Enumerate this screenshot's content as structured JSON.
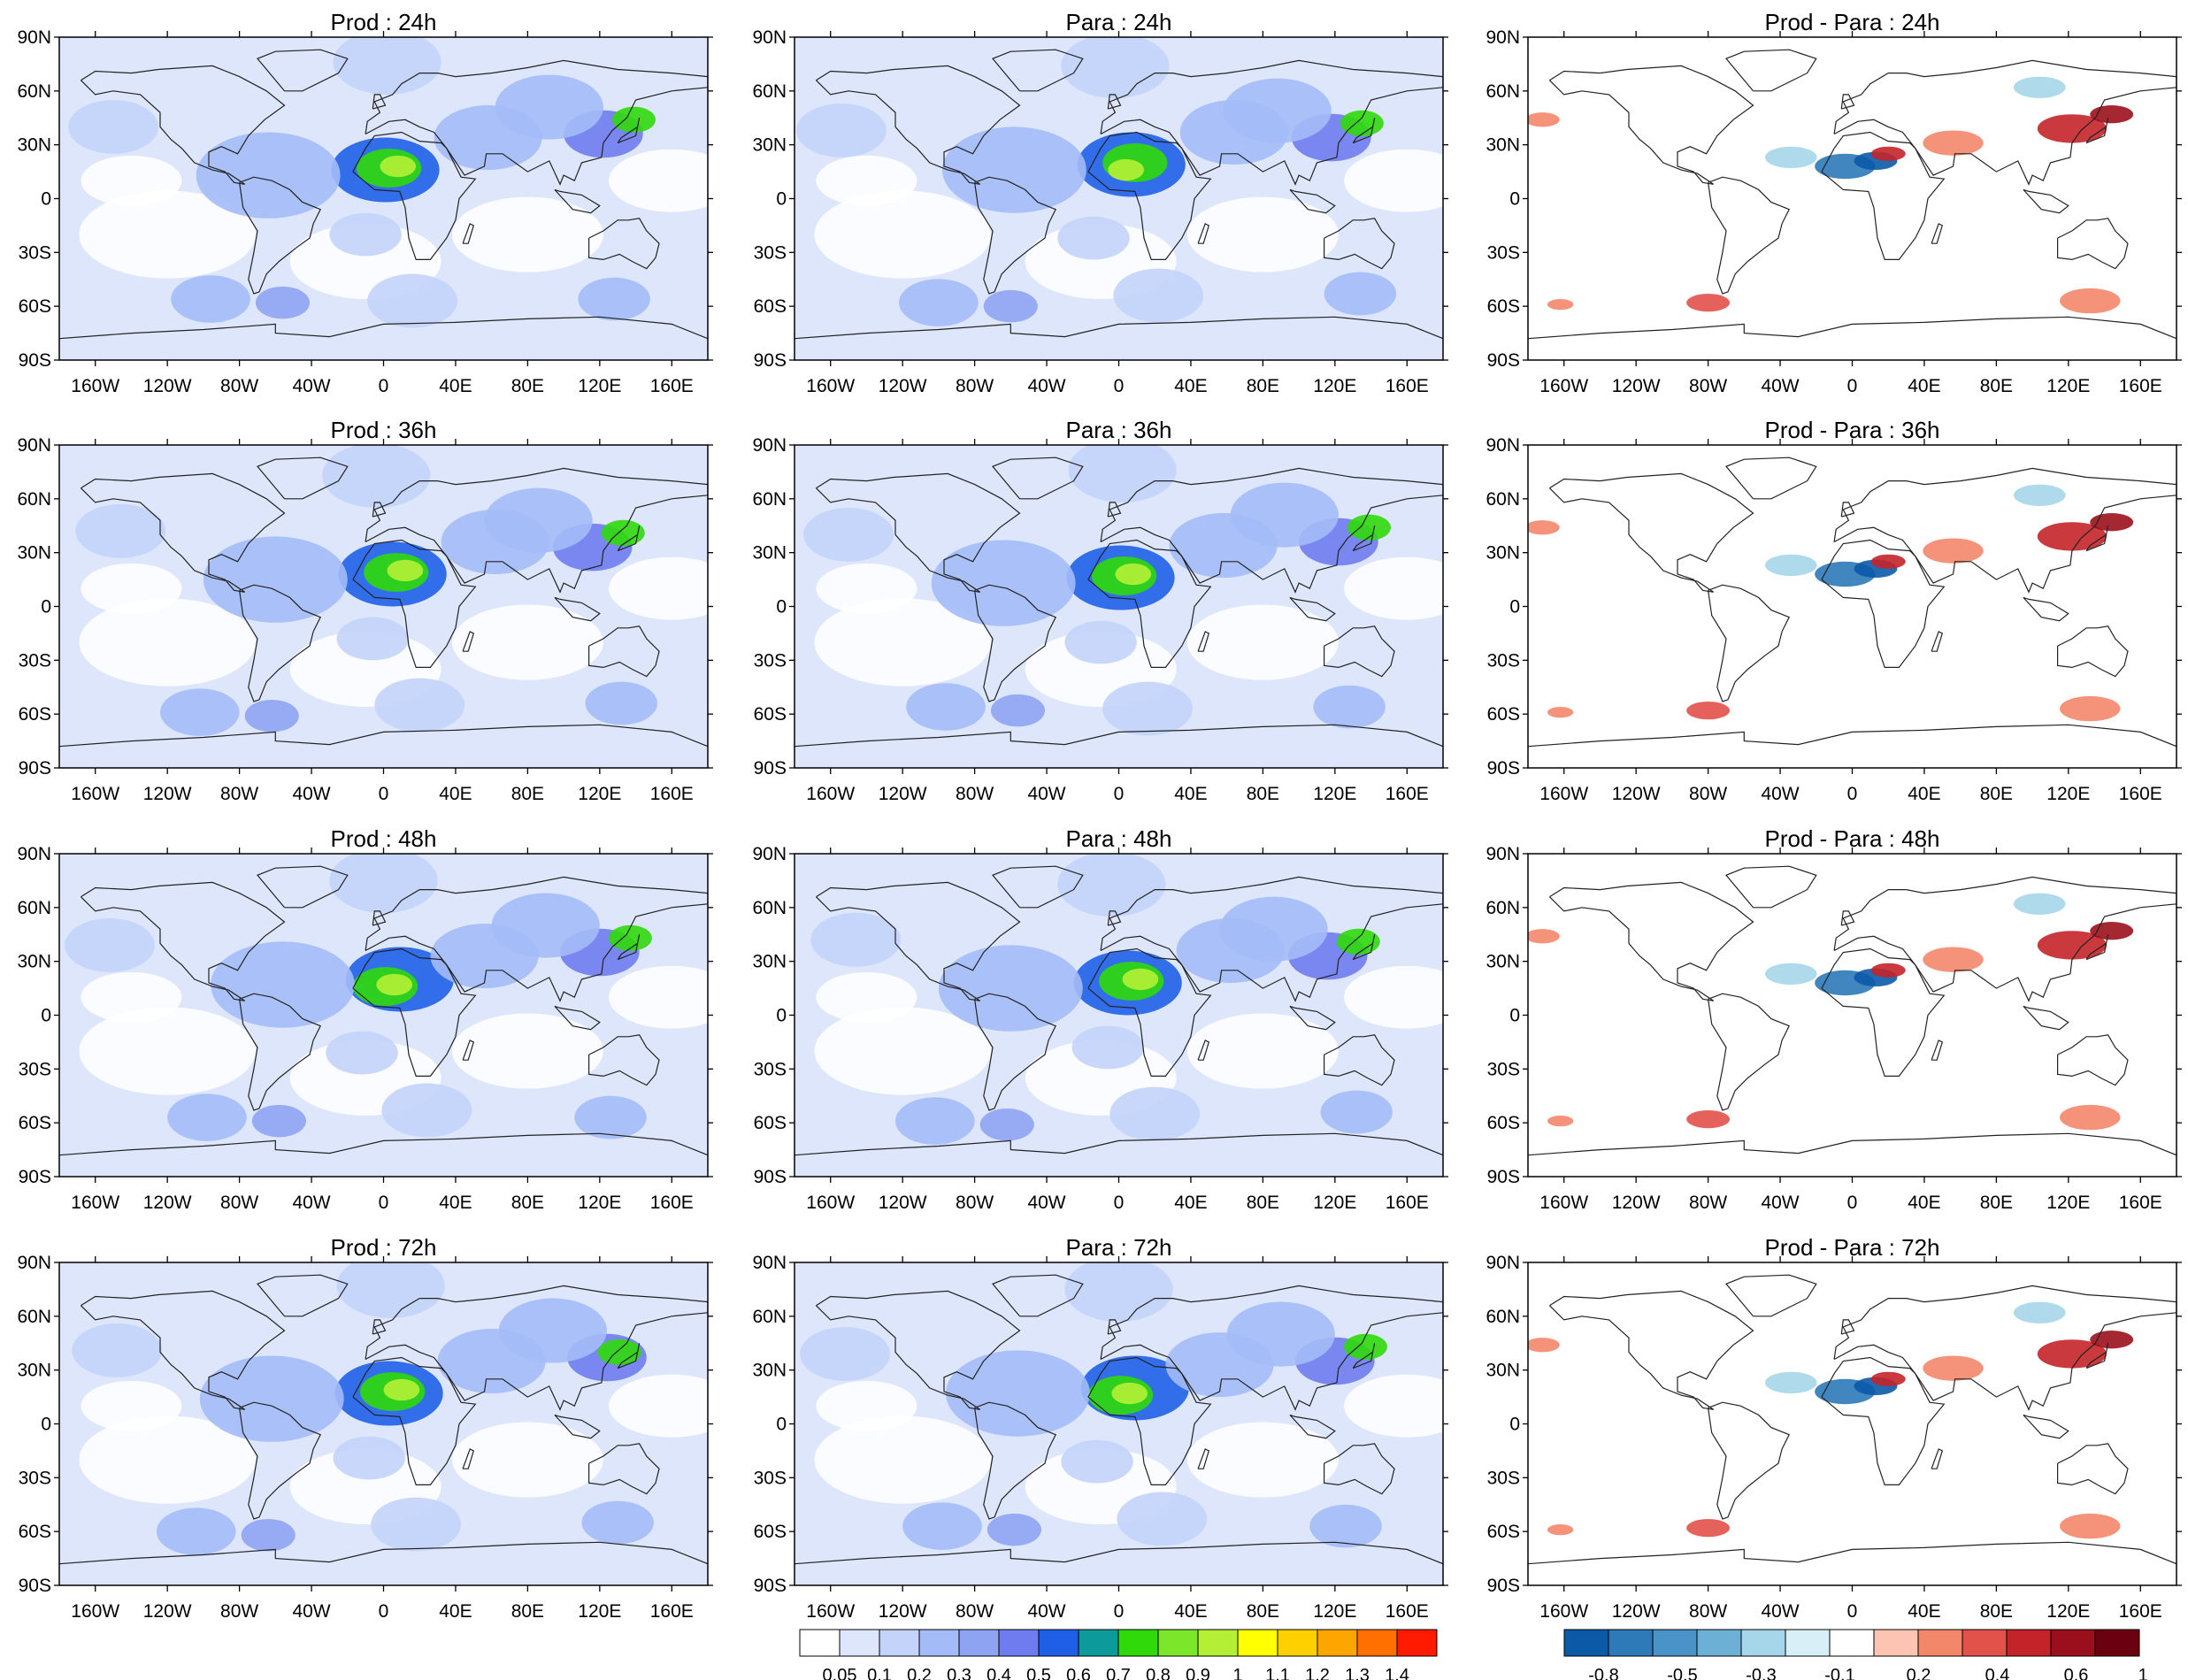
{
  "colors": {
    "field_scale": [
      "#ffffff",
      "#dde6fb",
      "#c3d3fa",
      "#a3bbf7",
      "#8ea4f3",
      "#6f7cef",
      "#1f5fe8",
      "#0c9a9a",
      "#2fd90a",
      "#7be62a",
      "#b5ef35",
      "#ffff00",
      "#ffd000",
      "#ffa500",
      "#ff7000",
      "#ff1a00"
    ],
    "diff_scale": [
      "#0b5aa8",
      "#2e79b8",
      "#4a93c8",
      "#6cb1d5",
      "#a5d6e9",
      "#d9eff7",
      "#ffffff",
      "#fdc4b4",
      "#f3876a",
      "#e2514a",
      "#c42429",
      "#9a0f1b",
      "#6b0010"
    ]
  },
  "panels": [
    {
      "title": "Prod : 24h",
      "type": "field",
      "row": 0,
      "col": 0
    },
    {
      "title": "Para : 24h",
      "type": "field",
      "row": 0,
      "col": 1
    },
    {
      "title": "Prod - Para : 24h",
      "type": "diff",
      "row": 0,
      "col": 2
    },
    {
      "title": "Prod : 36h",
      "type": "field",
      "row": 1,
      "col": 0
    },
    {
      "title": "Para : 36h",
      "type": "field",
      "row": 1,
      "col": 1
    },
    {
      "title": "Prod - Para : 36h",
      "type": "diff",
      "row": 1,
      "col": 2
    },
    {
      "title": "Prod : 48h",
      "type": "field",
      "row": 2,
      "col": 0
    },
    {
      "title": "Para : 48h",
      "type": "field",
      "row": 2,
      "col": 1
    },
    {
      "title": "Prod - Para : 48h",
      "type": "diff",
      "row": 2,
      "col": 2
    },
    {
      "title": "Prod : 72h",
      "type": "field",
      "row": 3,
      "col": 0
    },
    {
      "title": "Para : 72h",
      "type": "field",
      "row": 3,
      "col": 1
    },
    {
      "title": "Prod - Para : 72h",
      "type": "diff",
      "row": 3,
      "col": 2
    }
  ],
  "axes": {
    "lat_labels": [
      "90N",
      "60N",
      "30N",
      "0",
      "30S",
      "60S",
      "90S"
    ],
    "lat_values": [
      90,
      60,
      30,
      0,
      -30,
      -60,
      -90
    ],
    "lon_labels": [
      "160W",
      "120W",
      "80W",
      "40W",
      "0",
      "40E",
      "80E",
      "120E",
      "160E"
    ],
    "lon_values": [
      -160,
      -120,
      -80,
      -40,
      0,
      40,
      80,
      120,
      160
    ]
  },
  "colorbars": {
    "field": {
      "labels": [
        "0.05",
        "0.1",
        "0.2",
        "0.3",
        "0.4",
        "0.5",
        "0.6",
        "0.7",
        "0.8",
        "0.9",
        "1",
        "1.1",
        "1.2",
        "1.3",
        "1.4"
      ]
    },
    "diff": {
      "labels": [
        "-0.8",
        "-0.5",
        "-0.3",
        "-0.1",
        "0.2",
        "0.4",
        "0.6",
        "1"
      ]
    }
  }
}
